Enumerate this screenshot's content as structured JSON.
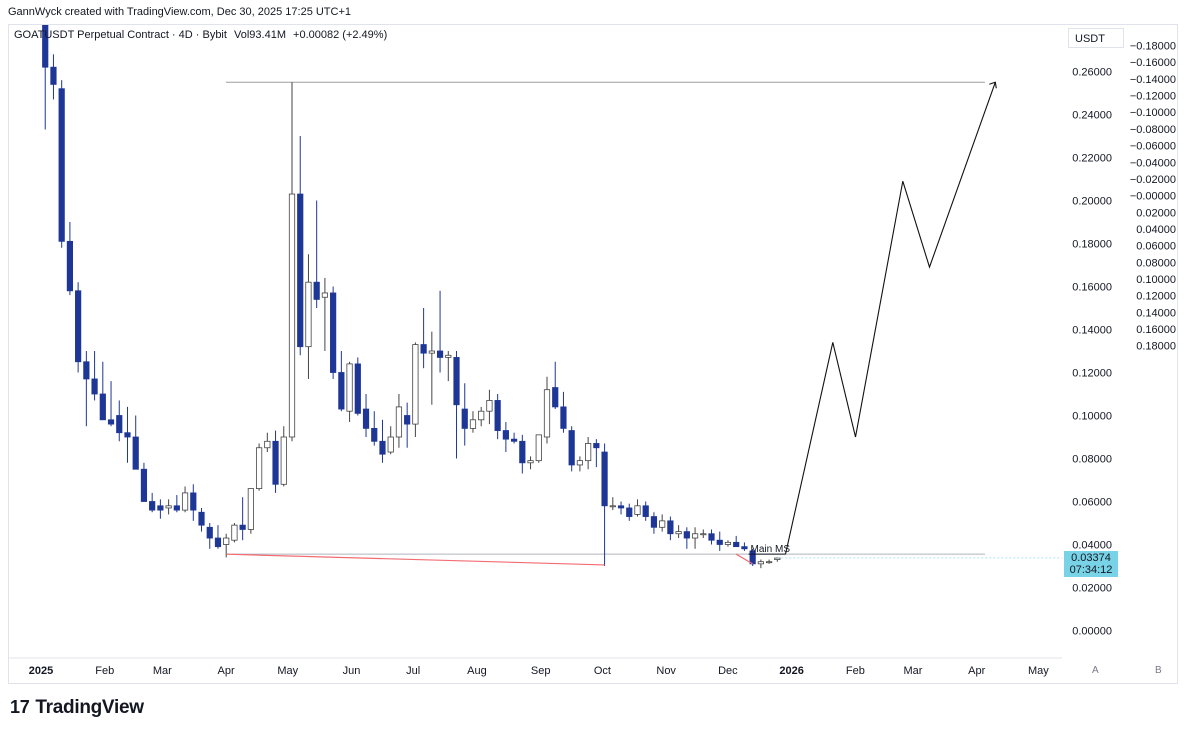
{
  "header": {
    "credit": "GannWyck created with TradingView.com, Dec 30, 2025 17:25 UTC+1"
  },
  "legend": {
    "symbol": "GOATUSDT Perpetual Contract · 4D · Bybit",
    "volume": "Vol93.41M",
    "change": "+0.00082 (+2.49%)"
  },
  "price_axis": {
    "unit": "USDT"
  },
  "price_tag": {
    "price": "0.03374",
    "countdown": "07:34:12"
  },
  "scale_buttons": {
    "a": "A",
    "b": "B"
  },
  "brand": {
    "logo_glyph": "17",
    "name": "TradingView"
  },
  "colors": {
    "down": "#1e3796",
    "up_fill": "#ffffff",
    "up_border": "#444444",
    "support_line": "#f26d73",
    "resistance_line": "#9e9e9e",
    "projection": "#111111",
    "price_tag_bg": "#79d3e6"
  },
  "chart_data": {
    "type": "candlestick",
    "timeframe": "4D",
    "x_ticks": [
      "2025",
      "Feb",
      "Mar",
      "Apr",
      "May",
      "Jun",
      "Jul",
      "Aug",
      "Sep",
      "Oct",
      "Nov",
      "Dec",
      "2026",
      "Feb",
      "Mar",
      "Apr",
      "May"
    ],
    "x_range": [
      "2025-01-01",
      "2026-05-15"
    ],
    "y_ticks_primary": [
      "0.26000",
      "0.24000",
      "0.22000",
      "0.20000",
      "0.18000",
      "0.16000",
      "0.14000",
      "0.12000",
      "0.10000",
      "0.08000",
      "0.06000",
      "0.04000",
      "0.02000",
      "0.00000"
    ],
    "y_ticks_secondary": [
      "-0.18000",
      "-0.16000",
      "-0.14000",
      "-0.12000",
      "-0.10000",
      "-0.08000",
      "-0.06000",
      "-0.04000",
      "-0.02000",
      "-0.00000",
      "0.02000",
      "0.04000",
      "0.06000",
      "0.08000",
      "0.10000",
      "0.12000",
      "0.14000",
      "0.16000",
      "0.18000"
    ],
    "ylim": [
      -0.01,
      0.28
    ],
    "last_price": 0.03374,
    "candles": [
      {
        "date": "2025-01-05",
        "o": 0.292,
        "h": 0.295,
        "l": 0.233,
        "c": 0.262
      },
      {
        "date": "2025-01-09",
        "o": 0.262,
        "h": 0.268,
        "l": 0.247,
        "c": 0.254
      },
      {
        "date": "2025-01-13",
        "o": 0.252,
        "h": 0.256,
        "l": 0.178,
        "c": 0.181
      },
      {
        "date": "2025-01-17",
        "o": 0.181,
        "h": 0.19,
        "l": 0.156,
        "c": 0.158
      },
      {
        "date": "2025-01-21",
        "o": 0.158,
        "h": 0.162,
        "l": 0.12,
        "c": 0.125
      },
      {
        "date": "2025-01-25",
        "o": 0.125,
        "h": 0.13,
        "l": 0.095,
        "c": 0.117
      },
      {
        "date": "2025-01-29",
        "o": 0.117,
        "h": 0.13,
        "l": 0.107,
        "c": 0.11
      },
      {
        "date": "2025-02-02",
        "o": 0.11,
        "h": 0.125,
        "l": 0.098,
        "c": 0.098
      },
      {
        "date": "2025-02-06",
        "o": 0.098,
        "h": 0.116,
        "l": 0.095,
        "c": 0.096
      },
      {
        "date": "2025-02-10",
        "o": 0.1,
        "h": 0.107,
        "l": 0.088,
        "c": 0.092
      },
      {
        "date": "2025-02-14",
        "o": 0.092,
        "h": 0.104,
        "l": 0.078,
        "c": 0.09
      },
      {
        "date": "2025-02-18",
        "o": 0.09,
        "h": 0.1,
        "l": 0.075,
        "c": 0.075
      },
      {
        "date": "2025-02-22",
        "o": 0.075,
        "h": 0.078,
        "l": 0.06,
        "c": 0.06
      },
      {
        "date": "2025-02-26",
        "o": 0.06,
        "h": 0.064,
        "l": 0.055,
        "c": 0.056
      },
      {
        "date": "2025-03-02",
        "o": 0.058,
        "h": 0.061,
        "l": 0.052,
        "c": 0.056
      },
      {
        "date": "2025-03-06",
        "o": 0.057,
        "h": 0.061,
        "l": 0.054,
        "c": 0.058
      },
      {
        "date": "2025-03-10",
        "o": 0.058,
        "h": 0.063,
        "l": 0.055,
        "c": 0.056
      },
      {
        "date": "2025-03-14",
        "o": 0.056,
        "h": 0.067,
        "l": 0.055,
        "c": 0.064
      },
      {
        "date": "2025-03-18",
        "o": 0.064,
        "h": 0.068,
        "l": 0.051,
        "c": 0.056
      },
      {
        "date": "2025-03-22",
        "o": 0.055,
        "h": 0.057,
        "l": 0.046,
        "c": 0.049
      },
      {
        "date": "2025-03-26",
        "o": 0.048,
        "h": 0.05,
        "l": 0.038,
        "c": 0.043
      },
      {
        "date": "2025-03-30",
        "o": 0.043,
        "h": 0.049,
        "l": 0.038,
        "c": 0.039
      },
      {
        "date": "2025-04-03",
        "o": 0.04,
        "h": 0.045,
        "l": 0.034,
        "c": 0.043
      },
      {
        "date": "2025-04-07",
        "o": 0.042,
        "h": 0.05,
        "l": 0.041,
        "c": 0.049
      },
      {
        "date": "2025-04-11",
        "o": 0.049,
        "h": 0.062,
        "l": 0.042,
        "c": 0.047
      },
      {
        "date": "2025-04-15",
        "o": 0.047,
        "h": 0.066,
        "l": 0.045,
        "c": 0.066
      },
      {
        "date": "2025-04-19",
        "o": 0.066,
        "h": 0.087,
        "l": 0.065,
        "c": 0.085
      },
      {
        "date": "2025-04-23",
        "o": 0.085,
        "h": 0.092,
        "l": 0.083,
        "c": 0.088
      },
      {
        "date": "2025-04-27",
        "o": 0.088,
        "h": 0.093,
        "l": 0.064,
        "c": 0.068
      },
      {
        "date": "2025-05-01",
        "o": 0.068,
        "h": 0.095,
        "l": 0.067,
        "c": 0.09
      },
      {
        "date": "2025-05-05",
        "o": 0.09,
        "h": 0.255,
        "l": 0.088,
        "c": 0.203
      },
      {
        "date": "2025-05-09",
        "o": 0.203,
        "h": 0.23,
        "l": 0.128,
        "c": 0.132
      },
      {
        "date": "2025-05-13",
        "o": 0.132,
        "h": 0.175,
        "l": 0.117,
        "c": 0.162
      },
      {
        "date": "2025-05-17",
        "o": 0.162,
        "h": 0.2,
        "l": 0.15,
        "c": 0.154
      },
      {
        "date": "2025-05-21",
        "o": 0.155,
        "h": 0.164,
        "l": 0.13,
        "c": 0.157
      },
      {
        "date": "2025-05-25",
        "o": 0.157,
        "h": 0.16,
        "l": 0.117,
        "c": 0.12
      },
      {
        "date": "2025-05-29",
        "o": 0.12,
        "h": 0.13,
        "l": 0.102,
        "c": 0.103
      },
      {
        "date": "2025-06-02",
        "o": 0.102,
        "h": 0.125,
        "l": 0.097,
        "c": 0.124
      },
      {
        "date": "2025-06-06",
        "o": 0.124,
        "h": 0.127,
        "l": 0.1,
        "c": 0.101
      },
      {
        "date": "2025-06-10",
        "o": 0.103,
        "h": 0.11,
        "l": 0.09,
        "c": 0.094
      },
      {
        "date": "2025-06-14",
        "o": 0.094,
        "h": 0.102,
        "l": 0.086,
        "c": 0.088
      },
      {
        "date": "2025-06-18",
        "o": 0.088,
        "h": 0.098,
        "l": 0.078,
        "c": 0.082
      },
      {
        "date": "2025-06-22",
        "o": 0.083,
        "h": 0.095,
        "l": 0.082,
        "c": 0.09
      },
      {
        "date": "2025-06-26",
        "o": 0.09,
        "h": 0.11,
        "l": 0.085,
        "c": 0.104
      },
      {
        "date": "2025-06-30",
        "o": 0.1,
        "h": 0.106,
        "l": 0.085,
        "c": 0.096
      },
      {
        "date": "2025-07-04",
        "o": 0.096,
        "h": 0.134,
        "l": 0.09,
        "c": 0.133
      },
      {
        "date": "2025-07-08",
        "o": 0.133,
        "h": 0.15,
        "l": 0.122,
        "c": 0.129
      },
      {
        "date": "2025-07-12",
        "o": 0.129,
        "h": 0.139,
        "l": 0.105,
        "c": 0.13
      },
      {
        "date": "2025-07-16",
        "o": 0.13,
        "h": 0.158,
        "l": 0.12,
        "c": 0.127
      },
      {
        "date": "2025-07-20",
        "o": 0.127,
        "h": 0.13,
        "l": 0.116,
        "c": 0.128
      },
      {
        "date": "2025-07-24",
        "o": 0.127,
        "h": 0.13,
        "l": 0.08,
        "c": 0.105
      },
      {
        "date": "2025-07-28",
        "o": 0.103,
        "h": 0.115,
        "l": 0.086,
        "c": 0.094
      },
      {
        "date": "2025-08-01",
        "o": 0.094,
        "h": 0.102,
        "l": 0.092,
        "c": 0.098
      },
      {
        "date": "2025-08-05",
        "o": 0.098,
        "h": 0.104,
        "l": 0.095,
        "c": 0.102
      },
      {
        "date": "2025-08-09",
        "o": 0.102,
        "h": 0.112,
        "l": 0.096,
        "c": 0.107
      },
      {
        "date": "2025-08-13",
        "o": 0.107,
        "h": 0.11,
        "l": 0.089,
        "c": 0.093
      },
      {
        "date": "2025-08-17",
        "o": 0.093,
        "h": 0.097,
        "l": 0.083,
        "c": 0.089
      },
      {
        "date": "2025-08-21",
        "o": 0.089,
        "h": 0.092,
        "l": 0.087,
        "c": 0.088
      },
      {
        "date": "2025-08-25",
        "o": 0.088,
        "h": 0.091,
        "l": 0.073,
        "c": 0.078
      },
      {
        "date": "2025-08-29",
        "o": 0.078,
        "h": 0.081,
        "l": 0.075,
        "c": 0.079
      },
      {
        "date": "2025-09-02",
        "o": 0.079,
        "h": 0.091,
        "l": 0.078,
        "c": 0.091
      },
      {
        "date": "2025-09-06",
        "o": 0.09,
        "h": 0.118,
        "l": 0.087,
        "c": 0.112
      },
      {
        "date": "2025-09-10",
        "o": 0.113,
        "h": 0.125,
        "l": 0.103,
        "c": 0.104
      },
      {
        "date": "2025-09-14",
        "o": 0.104,
        "h": 0.111,
        "l": 0.092,
        "c": 0.094
      },
      {
        "date": "2025-09-18",
        "o": 0.093,
        "h": 0.095,
        "l": 0.074,
        "c": 0.077
      },
      {
        "date": "2025-09-22",
        "o": 0.077,
        "h": 0.081,
        "l": 0.074,
        "c": 0.079
      },
      {
        "date": "2025-09-26",
        "o": 0.079,
        "h": 0.09,
        "l": 0.075,
        "c": 0.087
      },
      {
        "date": "2025-09-30",
        "o": 0.087,
        "h": 0.089,
        "l": 0.076,
        "c": 0.085
      },
      {
        "date": "2025-10-04",
        "o": 0.083,
        "h": 0.087,
        "l": 0.03,
        "c": 0.058
      },
      {
        "date": "2025-10-08",
        "o": 0.058,
        "h": 0.062,
        "l": 0.056,
        "c": 0.058
      },
      {
        "date": "2025-10-12",
        "o": 0.058,
        "h": 0.06,
        "l": 0.054,
        "c": 0.057
      },
      {
        "date": "2025-10-16",
        "o": 0.057,
        "h": 0.059,
        "l": 0.051,
        "c": 0.053
      },
      {
        "date": "2025-10-20",
        "o": 0.054,
        "h": 0.061,
        "l": 0.053,
        "c": 0.058
      },
      {
        "date": "2025-10-24",
        "o": 0.058,
        "h": 0.06,
        "l": 0.051,
        "c": 0.053
      },
      {
        "date": "2025-10-28",
        "o": 0.053,
        "h": 0.055,
        "l": 0.045,
        "c": 0.048
      },
      {
        "date": "2025-11-01",
        "o": 0.048,
        "h": 0.054,
        "l": 0.046,
        "c": 0.051
      },
      {
        "date": "2025-11-05",
        "o": 0.051,
        "h": 0.053,
        "l": 0.042,
        "c": 0.045
      },
      {
        "date": "2025-11-09",
        "o": 0.045,
        "h": 0.049,
        "l": 0.043,
        "c": 0.046
      },
      {
        "date": "2025-11-13",
        "o": 0.046,
        "h": 0.048,
        "l": 0.038,
        "c": 0.043
      },
      {
        "date": "2025-11-17",
        "o": 0.043,
        "h": 0.048,
        "l": 0.038,
        "c": 0.045
      },
      {
        "date": "2025-11-21",
        "o": 0.045,
        "h": 0.047,
        "l": 0.043,
        "c": 0.045
      },
      {
        "date": "2025-11-25",
        "o": 0.045,
        "h": 0.047,
        "l": 0.04,
        "c": 0.042
      },
      {
        "date": "2025-11-29",
        "o": 0.042,
        "h": 0.046,
        "l": 0.037,
        "c": 0.04
      },
      {
        "date": "2025-12-03",
        "o": 0.04,
        "h": 0.042,
        "l": 0.039,
        "c": 0.041
      },
      {
        "date": "2025-12-07",
        "o": 0.041,
        "h": 0.044,
        "l": 0.039,
        "c": 0.039
      },
      {
        "date": "2025-12-11",
        "o": 0.039,
        "h": 0.041,
        "l": 0.037,
        "c": 0.038
      },
      {
        "date": "2025-12-15",
        "o": 0.037,
        "h": 0.038,
        "l": 0.03,
        "c": 0.031
      },
      {
        "date": "2025-12-19",
        "o": 0.031,
        "h": 0.033,
        "l": 0.029,
        "c": 0.032
      },
      {
        "date": "2025-12-23",
        "o": 0.032,
        "h": 0.033,
        "l": 0.031,
        "c": 0.032
      },
      {
        "date": "2025-12-27",
        "o": 0.033,
        "h": 0.034,
        "l": 0.032,
        "c": 0.0337
      }
    ],
    "drawings": {
      "resistance_level": 0.255,
      "support_level": 0.0355,
      "support_trendline": [
        {
          "date": "2025-04-03",
          "price": 0.0355
        },
        {
          "date": "2025-10-04",
          "price": 0.0305
        }
      ],
      "recent_trendline": [
        {
          "date": "2025-12-07",
          "price": 0.0355
        },
        {
          "date": "2025-12-15",
          "price": 0.031
        }
      ],
      "main_ms_level": 0.0355,
      "main_ms_label": "Main MS",
      "projection_path": [
        {
          "date": "2025-12-31",
          "price": 0.0355
        },
        {
          "date": "2026-01-23",
          "price": 0.134
        },
        {
          "date": "2026-02-03",
          "price": 0.09
        },
        {
          "date": "2026-02-26",
          "price": 0.209
        },
        {
          "date": "2026-03-11",
          "price": 0.169
        },
        {
          "date": "2026-04-12",
          "price": 0.255
        }
      ]
    }
  }
}
